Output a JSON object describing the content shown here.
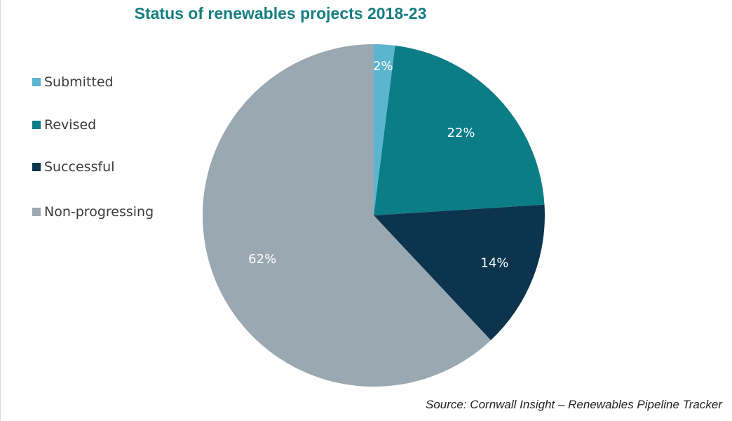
{
  "chart_data": {
    "type": "pie",
    "title": "Status of renewables projects 2018-23",
    "slices": [
      {
        "name": "Submitted",
        "value": 2,
        "label": "2%",
        "color": "#5bb5cf"
      },
      {
        "name": "Revised",
        "value": 22,
        "label": "22%",
        "color": "#0b7d87"
      },
      {
        "name": "Successful",
        "value": 14,
        "label": "14%",
        "color": "#0c344d"
      },
      {
        "name": "Non-progressing",
        "value": 62,
        "label": "62%",
        "color": "#9aa8b1"
      }
    ],
    "legend_position": "left",
    "source": "Source: Cornwall Insight – Renewables Pipeline Tracker"
  }
}
